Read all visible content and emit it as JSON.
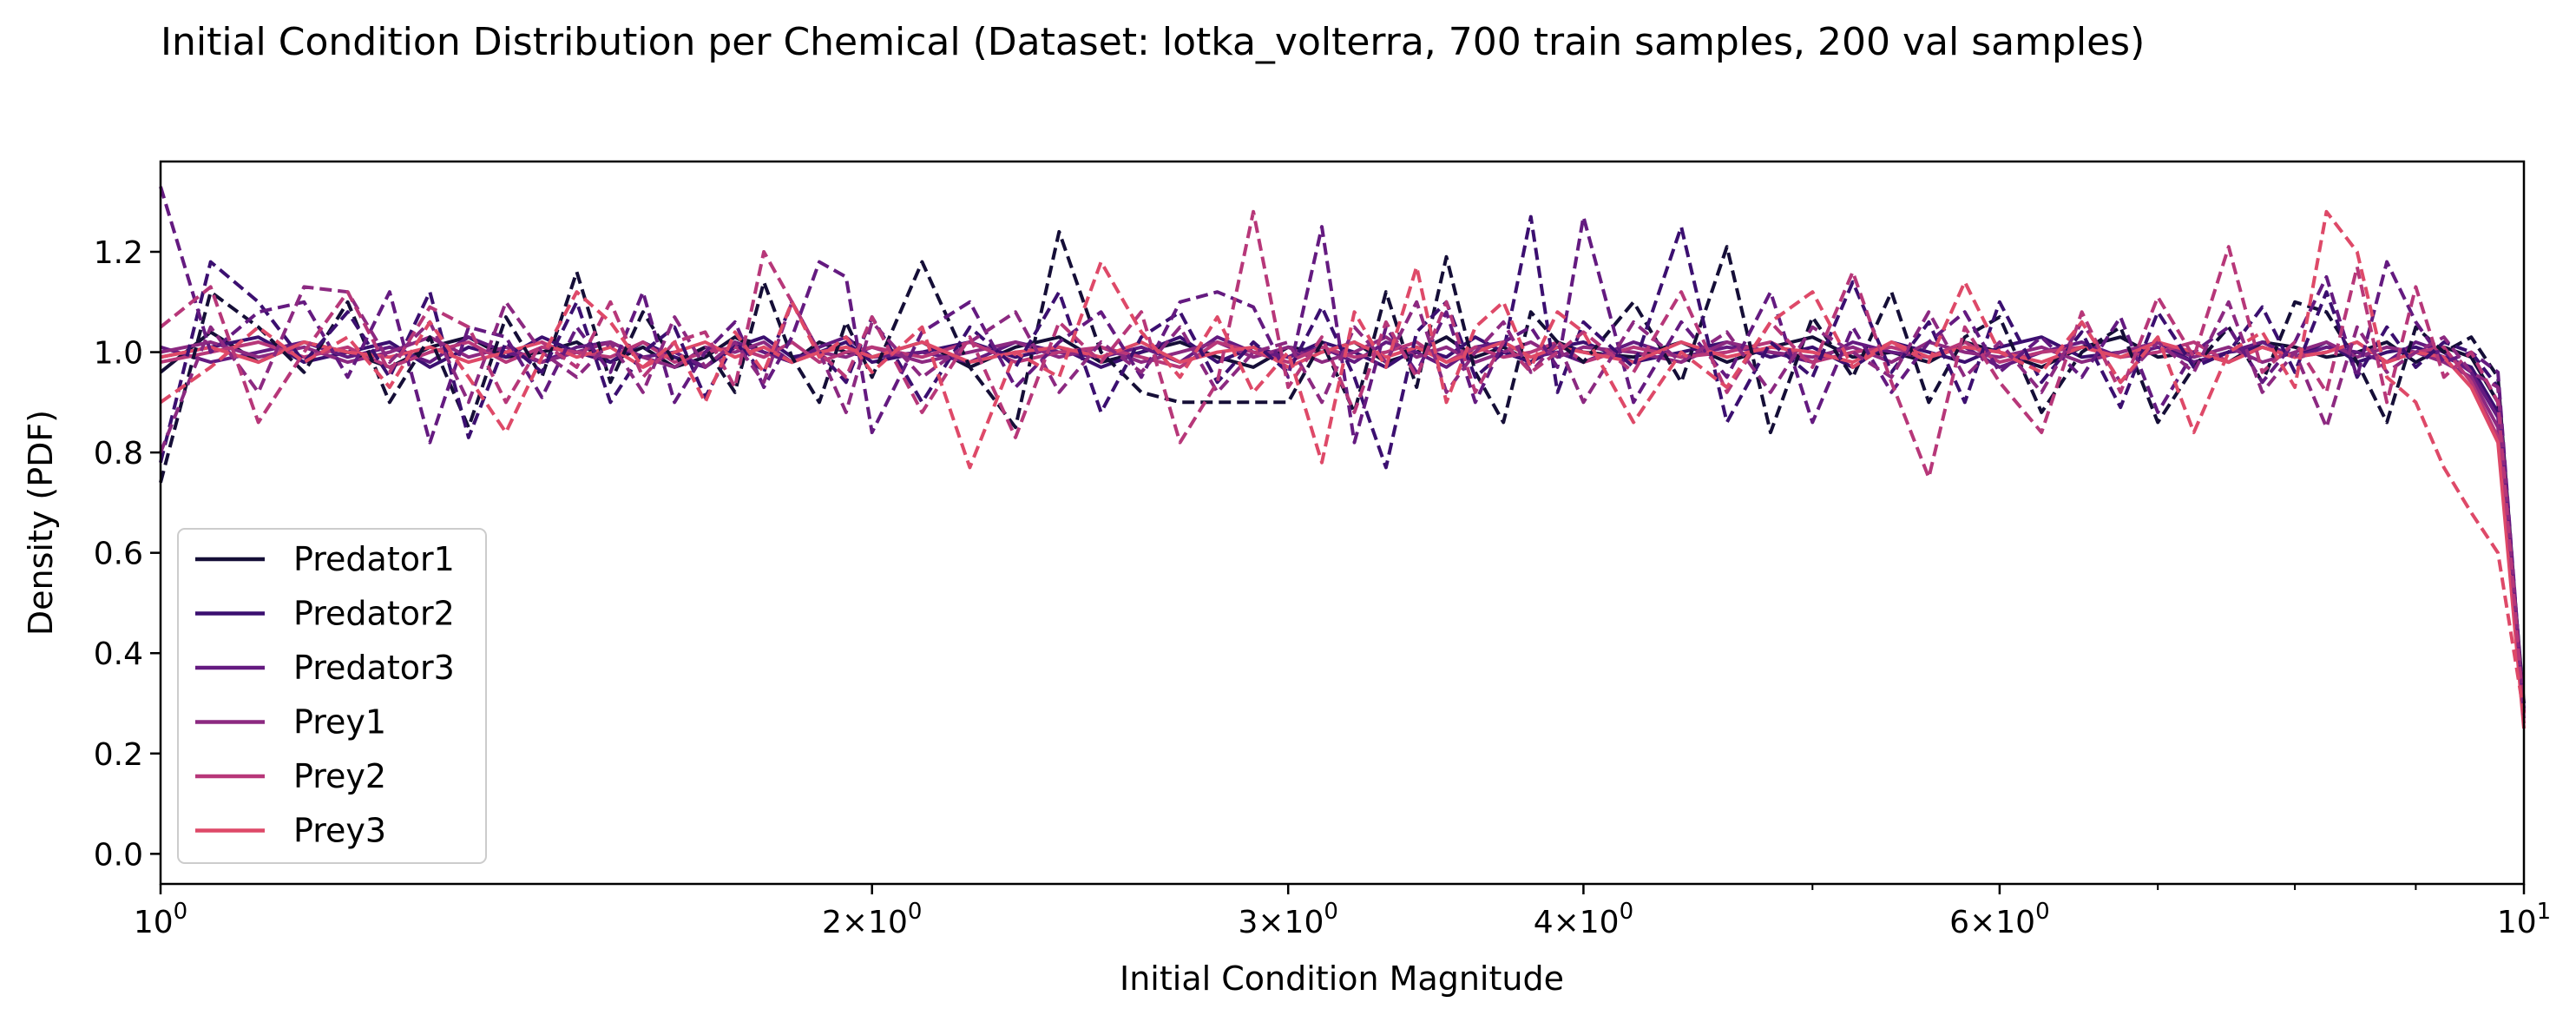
{
  "chart_data": {
    "type": "line",
    "title": "Initial Condition Distribution per Chemical (Dataset: lotka_volterra, 700 train samples, 200 val samples)",
    "xlabel": "Initial Condition Magnitude",
    "ylabel": "Density (PDF)",
    "xscale": "log",
    "xlim": [
      1,
      10
    ],
    "ylim": [
      -0.06,
      1.38
    ],
    "x_ticks": [
      {
        "value": 1,
        "label": "10^0"
      },
      {
        "value": 2,
        "label": "2×10^0"
      },
      {
        "value": 3,
        "label": "3×10^0"
      },
      {
        "value": 4,
        "label": "4×10^0"
      },
      {
        "value": 6,
        "label": "6×10^0"
      },
      {
        "value": 10,
        "label": "10^1"
      }
    ],
    "x_minor_ticks": [
      5,
      7,
      8,
      9
    ],
    "y_ticks": [
      0.0,
      0.2,
      0.4,
      0.6,
      0.8,
      1.0,
      1.2
    ],
    "y_tick_labels": [
      "0.0",
      "0.2",
      "0.4",
      "0.6",
      "0.8",
      "1.0",
      "1.2"
    ],
    "grid": false,
    "legend_position": "lower-left",
    "linestyle_note": "solid = train, dashed = val (unlabeled in legend)",
    "x": [
      1.0,
      1.05,
      1.1,
      1.15,
      1.2,
      1.25,
      1.3,
      1.35,
      1.4,
      1.45,
      1.5,
      1.55,
      1.6,
      1.65,
      1.7,
      1.75,
      1.8,
      1.85,
      1.9,
      1.95,
      2.0,
      2.1,
      2.2,
      2.3,
      2.4,
      2.5,
      2.6,
      2.7,
      2.8,
      2.9,
      3.0,
      3.1,
      3.2,
      3.3,
      3.4,
      3.5,
      3.6,
      3.7,
      3.8,
      3.9,
      4.0,
      4.2,
      4.4,
      4.6,
      4.8,
      5.0,
      5.2,
      5.4,
      5.6,
      5.8,
      6.0,
      6.25,
      6.5,
      6.75,
      7.0,
      7.25,
      7.5,
      7.75,
      8.0,
      8.25,
      8.5,
      8.75,
      9.0,
      9.25,
      9.5,
      9.75,
      10.0
    ],
    "series": [
      {
        "name": "Predator1",
        "color": "#150e37",
        "style": "solid",
        "values": [
          0.96,
          1.04,
          0.98,
          1.02,
          1.0,
          0.97,
          1.01,
          1.03,
          0.99,
          1.0,
          1.02,
          0.98,
          1.01,
          0.97,
          0.99,
          1.03,
          1.0,
          0.98,
          1.02,
          1.0,
          0.99,
          1.02,
          0.97,
          1.01,
          1.03,
          0.98,
          1.0,
          1.02,
          0.99,
          0.97,
          1.01,
          1.0,
          1.02,
          0.98,
          1.0,
          1.03,
          0.99,
          1.01,
          0.98,
          1.02,
          1.0,
          0.99,
          1.02,
          0.98,
          1.01,
          1.03,
          0.99,
          1.0,
          0.98,
          1.02,
          1.0,
          0.97,
          1.01,
          1.03,
          0.99,
          1.0,
          0.98,
          1.02,
          1.01,
          0.99,
          1.0,
          1.02,
          0.98,
          1.01,
          0.99,
          0.9,
          0.3
        ]
      },
      {
        "name": "Predator2",
        "color": "#3b0f70",
        "style": "solid",
        "values": [
          0.99,
          1.01,
          1.03,
          0.98,
          1.0,
          1.02,
          0.97,
          1.01,
          0.99,
          1.03,
          1.0,
          0.98,
          1.02,
          0.99,
          0.97,
          1.01,
          1.03,
          0.99,
          1.0,
          1.02,
          0.98,
          1.0,
          1.02,
          0.99,
          1.01,
          0.97,
          1.0,
          1.03,
          0.98,
          1.01,
          0.99,
          1.02,
          1.0,
          0.97,
          1.01,
          0.99,
          1.03,
          1.0,
          0.98,
          1.01,
          1.02,
          0.98,
          1.0,
          1.02,
          0.99,
          1.01,
          0.97,
          1.02,
          1.0,
          0.98,
          1.01,
          1.03,
          0.99,
          1.0,
          1.02,
          0.98,
          1.0,
          1.01,
          0.99,
          1.02,
          0.98,
          1.0,
          1.01,
          0.99,
          0.97,
          0.88,
          0.29
        ]
      },
      {
        "name": "Predator3",
        "color": "#641a80",
        "style": "solid",
        "values": [
          1.01,
          0.98,
          1.0,
          1.02,
          0.99,
          1.01,
          0.98,
          1.03,
          1.0,
          0.98,
          1.01,
          1.02,
          0.99,
          1.0,
          0.97,
          1.02,
          1.0,
          0.98,
          1.01,
          1.03,
          0.99,
          1.0,
          0.98,
          1.02,
          1.0,
          0.99,
          1.01,
          0.98,
          1.03,
          1.0,
          0.99,
          1.01,
          0.98,
          1.02,
          1.0,
          0.97,
          1.01,
          1.02,
          0.99,
          1.0,
          0.98,
          1.02,
          0.99,
          1.01,
          1.0,
          0.98,
          1.02,
          1.0,
          0.99,
          1.01,
          0.97,
          1.0,
          1.02,
          0.99,
          1.01,
          0.98,
          1.0,
          1.02,
          0.99,
          1.01,
          1.0,
          0.98,
          1.02,
          1.0,
          0.96,
          0.87,
          0.28
        ]
      },
      {
        "name": "Prey1",
        "color": "#8c2981",
        "style": "solid",
        "values": [
          1.0,
          1.02,
          0.99,
          1.01,
          0.98,
          1.0,
          1.03,
          0.99,
          1.01,
          0.98,
          1.0,
          1.02,
          0.99,
          0.97,
          1.01,
          1.0,
          1.02,
          0.98,
          1.0,
          0.99,
          1.01,
          0.98,
          1.0,
          1.02,
          0.99,
          1.01,
          0.98,
          1.0,
          1.02,
          0.99,
          1.01,
          0.98,
          1.0,
          1.03,
          0.99,
          1.01,
          0.98,
          1.0,
          1.02,
          0.99,
          1.01,
          1.0,
          0.98,
          1.02,
          1.0,
          0.99,
          1.01,
          0.98,
          1.02,
          1.0,
          0.99,
          1.01,
          0.98,
          1.0,
          1.02,
          0.99,
          1.01,
          0.98,
          1.0,
          1.02,
          0.99,
          1.01,
          1.0,
          0.98,
          0.95,
          0.85,
          0.27
        ]
      },
      {
        "name": "Prey2",
        "color": "#b73779",
        "style": "solid",
        "values": [
          0.98,
          1.0,
          1.02,
          0.99,
          1.01,
          0.97,
          1.0,
          1.02,
          0.98,
          1.01,
          1.0,
          0.99,
          1.02,
          0.98,
          1.0,
          1.01,
          0.99,
          1.02,
          0.98,
          1.0,
          1.01,
          0.99,
          1.02,
          0.98,
          1.0,
          1.01,
          0.99,
          0.97,
          1.02,
          1.0,
          0.98,
          1.01,
          0.99,
          1.0,
          1.02,
          0.98,
          1.01,
          0.99,
          1.0,
          1.02,
          0.98,
          1.01,
          0.99,
          1.0,
          1.02,
          0.98,
          1.0,
          1.01,
          0.99,
          1.02,
          0.98,
          1.0,
          1.01,
          0.99,
          1.0,
          1.02,
          0.98,
          1.01,
          0.99,
          1.0,
          1.02,
          0.98,
          1.0,
          1.01,
          0.94,
          0.83,
          0.26
        ]
      },
      {
        "name": "Prey3",
        "color": "#de4968",
        "style": "solid",
        "values": [
          0.99,
          1.01,
          0.98,
          1.02,
          1.0,
          0.99,
          1.01,
          0.98,
          1.0,
          1.02,
          0.99,
          1.01,
          0.97,
          1.0,
          1.02,
          0.99,
          1.01,
          0.98,
          1.0,
          1.01,
          0.99,
          1.02,
          0.98,
          1.0,
          1.01,
          0.99,
          1.02,
          0.98,
          1.0,
          1.01,
          0.97,
          1.0,
          1.02,
          0.99,
          1.01,
          0.98,
          1.0,
          1.02,
          0.99,
          1.01,
          1.0,
          0.98,
          1.02,
          0.99,
          1.01,
          1.0,
          0.98,
          1.02,
          0.99,
          1.01,
          1.0,
          0.98,
          1.01,
          0.99,
          1.02,
          1.0,
          0.98,
          1.01,
          0.99,
          1.0,
          1.02,
          0.98,
          1.0,
          0.99,
          0.93,
          0.82,
          0.25
        ]
      },
      {
        "color": "#150e37",
        "style": "dashed",
        "values": [
          0.74,
          1.12,
          1.05,
          0.96,
          1.1,
          0.9,
          1.03,
          0.85,
          1.07,
          0.95,
          1.16,
          0.94,
          1.08,
          0.98,
          1.01,
          0.92,
          1.14,
          0.99,
          0.9,
          1.06,
          0.95,
          1.18,
          0.97,
          0.85,
          1.24,
          1.0,
          0.92,
          0.9,
          0.9,
          0.9,
          0.9,
          1.02,
          0.88,
          1.12,
          0.93,
          1.19,
          0.96,
          0.86,
          1.08,
          1.02,
          0.98,
          1.1,
          0.94,
          1.21,
          0.84,
          1.07,
          0.95,
          1.12,
          0.9,
          1.03,
          1.07,
          0.88,
          1.0,
          1.05,
          0.86,
          0.97,
          1.05,
          0.94,
          1.1,
          1.08,
          0.98,
          0.86,
          1.05,
          1.0,
          1.03,
          0.95,
          0.28
        ]
      },
      {
        "color": "#3b0f70",
        "style": "dashed",
        "values": [
          0.78,
          1.18,
          1.1,
          0.98,
          1.08,
          0.95,
          1.12,
          0.83,
          1.02,
          0.96,
          1.1,
          0.9,
          1.0,
          1.05,
          0.91,
          1.02,
          0.96,
          1.1,
          1.0,
          0.94,
          1.07,
          0.9,
          1.05,
          0.97,
          1.12,
          0.88,
          1.03,
          1.08,
          0.94,
          1.02,
          0.96,
          1.09,
          0.95,
          0.77,
          1.04,
          1.1,
          0.95,
          1.0,
          1.27,
          0.92,
          1.06,
          0.97,
          1.25,
          0.86,
          1.02,
          0.95,
          1.14,
          0.96,
          1.06,
          0.9,
          1.1,
          0.94,
          1.04,
          0.89,
          1.08,
          0.97,
          1.0,
          1.09,
          0.96,
          1.12,
          0.95,
          1.05,
          0.97,
          1.02,
          1.0,
          0.93,
          0.28
        ]
      },
      {
        "color": "#641a80",
        "style": "dashed",
        "values": [
          1.33,
          1.0,
          1.08,
          1.1,
          0.95,
          1.12,
          0.82,
          1.05,
          1.03,
          0.91,
          1.05,
          0.96,
          1.12,
          0.9,
          1.0,
          1.06,
          0.93,
          1.03,
          1.18,
          1.15,
          0.84,
          1.04,
          1.1,
          0.93,
          1.02,
          1.08,
          0.95,
          1.1,
          1.12,
          1.09,
          0.95,
          1.25,
          0.82,
          1.05,
          0.96,
          1.08,
          0.9,
          1.02,
          1.05,
          0.97,
          1.27,
          0.9,
          1.06,
          0.95,
          1.12,
          0.86,
          1.05,
          0.92,
          1.02,
          1.08,
          0.96,
          1.03,
          0.95,
          1.07,
          0.88,
          1.0,
          1.05,
          0.94,
          1.02,
          1.15,
          0.95,
          1.18,
          1.06,
          0.98,
          1.0,
          0.96,
          0.28
        ]
      },
      {
        "color": "#8c2981",
        "style": "dashed",
        "values": [
          0.8,
          1.05,
          0.92,
          1.13,
          1.12,
          0.98,
          1.06,
          0.9,
          1.1,
          1.0,
          0.95,
          1.02,
          0.92,
          1.07,
          0.97,
          1.02,
          0.94,
          1.1,
          1.0,
          0.88,
          1.06,
          0.95,
          1.02,
          1.08,
          0.92,
          1.02,
          0.96,
          1.05,
          0.92,
          1.0,
          1.02,
          0.9,
          1.05,
          0.98,
          1.1,
          0.92,
          1.0,
          1.06,
          0.96,
          1.02,
          0.9,
          1.06,
          0.98,
          1.04,
          0.92,
          1.05,
          1.0,
          0.95,
          1.08,
          0.95,
          1.02,
          0.92,
          1.06,
          0.94,
          1.02,
          0.96,
          1.1,
          0.92,
          1.0,
          0.85,
          1.05,
          0.96,
          1.0,
          1.03,
          0.96,
          0.93,
          0.28
        ]
      },
      {
        "color": "#b73779",
        "style": "dashed",
        "values": [
          1.05,
          1.13,
          0.86,
          1.0,
          1.12,
          0.96,
          1.09,
          1.05,
          0.9,
          1.02,
          0.97,
          1.1,
          0.95,
          1.02,
          1.04,
          0.93,
          1.2,
          1.1,
          1.0,
          0.95,
          1.07,
          0.88,
          1.03,
          0.83,
          1.06,
          0.98,
          1.08,
          0.82,
          0.94,
          1.28,
          0.93,
          1.03,
          0.88,
          1.06,
          0.95,
          1.1,
          0.92,
          1.02,
          0.96,
          1.0,
          1.04,
          0.96,
          1.12,
          0.92,
          1.06,
          0.97,
          1.16,
          0.94,
          0.75,
          1.05,
          0.94,
          0.84,
          1.08,
          0.92,
          1.11,
          0.99,
          1.21,
          0.96,
          1.02,
          0.92,
          1.17,
          0.9,
          1.13,
          0.95,
          1.0,
          0.9,
          0.27
        ]
      },
      {
        "color": "#de4968",
        "style": "dashed",
        "values": [
          0.9,
          0.97,
          1.05,
          0.98,
          1.03,
          0.93,
          1.06,
          0.95,
          0.84,
          0.99,
          1.12,
          1.06,
          0.97,
          1.02,
          0.9,
          1.04,
          0.96,
          1.1,
          0.99,
          1.03,
          0.96,
          1.05,
          0.77,
          1.0,
          0.95,
          1.18,
          1.04,
          0.95,
          1.07,
          0.92,
          1.0,
          0.78,
          1.08,
          0.97,
          1.17,
          0.9,
          1.05,
          1.1,
          0.97,
          1.08,
          1.04,
          0.86,
          1.0,
          0.93,
          1.06,
          1.12,
          0.97,
          1.02,
          0.98,
          1.14,
          1.0,
          0.96,
          1.06,
          0.94,
          1.03,
          0.84,
          1.0,
          1.04,
          0.93,
          1.28,
          1.2,
          0.95,
          0.9,
          0.77,
          0.68,
          0.6,
          0.28
        ]
      }
    ]
  }
}
